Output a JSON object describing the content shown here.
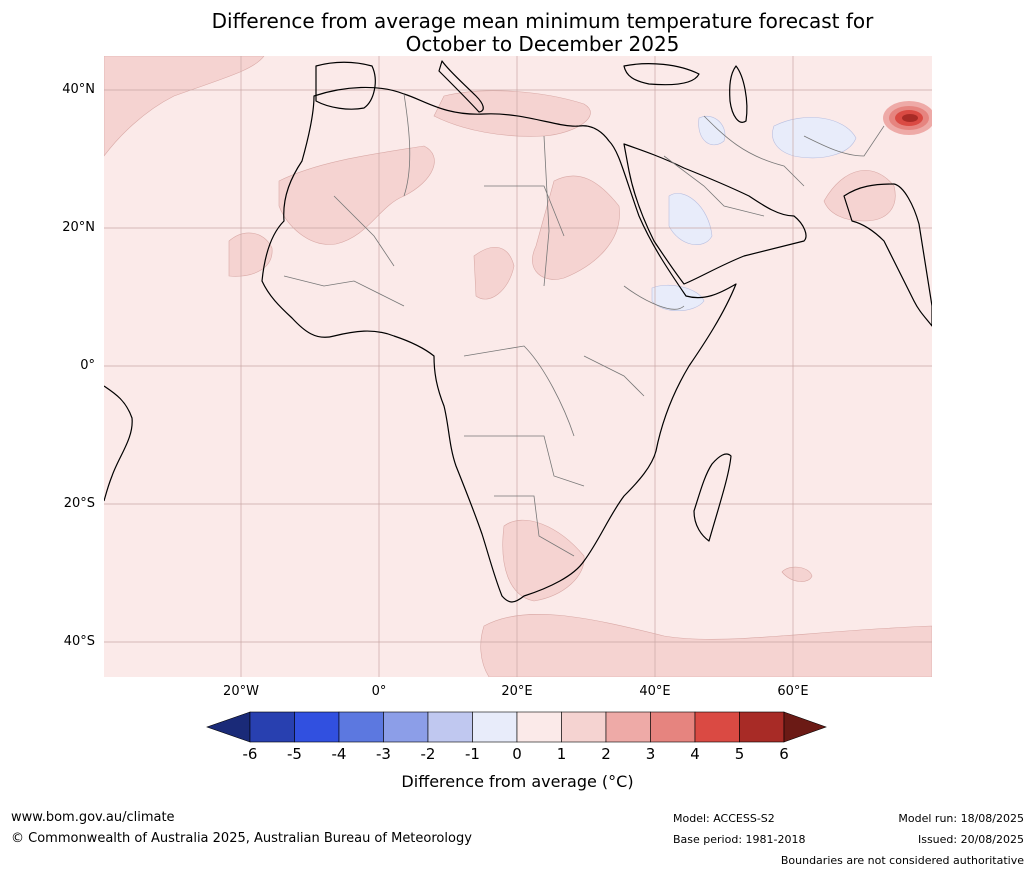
{
  "title_line1": "Difference from average mean minimum temperature forecast for",
  "title_line2": "October to December 2025",
  "map": {
    "lat_labels": [
      {
        "key": "40n",
        "text": "40°N"
      },
      {
        "key": "20n",
        "text": "20°N"
      },
      {
        "key": "0",
        "text": "0°"
      },
      {
        "key": "20s",
        "text": "20°S"
      },
      {
        "key": "40s",
        "text": "40°S"
      }
    ],
    "lon_labels": [
      {
        "key": "20w",
        "text": "20°W"
      },
      {
        "key": "0",
        "text": "0°"
      },
      {
        "key": "20e",
        "text": "20°E"
      },
      {
        "key": "40e",
        "text": "40°E"
      },
      {
        "key": "60e",
        "text": "60°E"
      }
    ],
    "background_category": "0 to 1",
    "hotspot_label": "up to 6 near 75°E, 36°N"
  },
  "colorbar": {
    "ticks": [
      "-6",
      "-5",
      "-4",
      "-3",
      "-2",
      "-1",
      "0",
      "1",
      "2",
      "3",
      "4",
      "5",
      "6"
    ],
    "colors": {
      "under": "#1a2a78",
      "bins": [
        "#2840b0",
        "#3150e0",
        "#5c78e0",
        "#8c9ee8",
        "#c0c8f0",
        "#e8ecfa",
        "#fbeae9",
        "#f5d3d1",
        "#eeaaa7",
        "#e6847f",
        "#da4a43",
        "#a82b26"
      ],
      "over": "#6b1a15"
    },
    "label": "Difference from average (°C)"
  },
  "footer": {
    "website": "www.bom.gov.au/climate",
    "copyright": "© Commonwealth of Australia 2025, Australian Bureau of Meteorology",
    "model": "Model: ACCESS-S2",
    "base_period": "Base period: 1981-2018",
    "model_run": "Model run: 18/08/2025",
    "issued": "Issued: 20/08/2025",
    "disclaimer": "Boundaries are not considered authoritative"
  }
}
